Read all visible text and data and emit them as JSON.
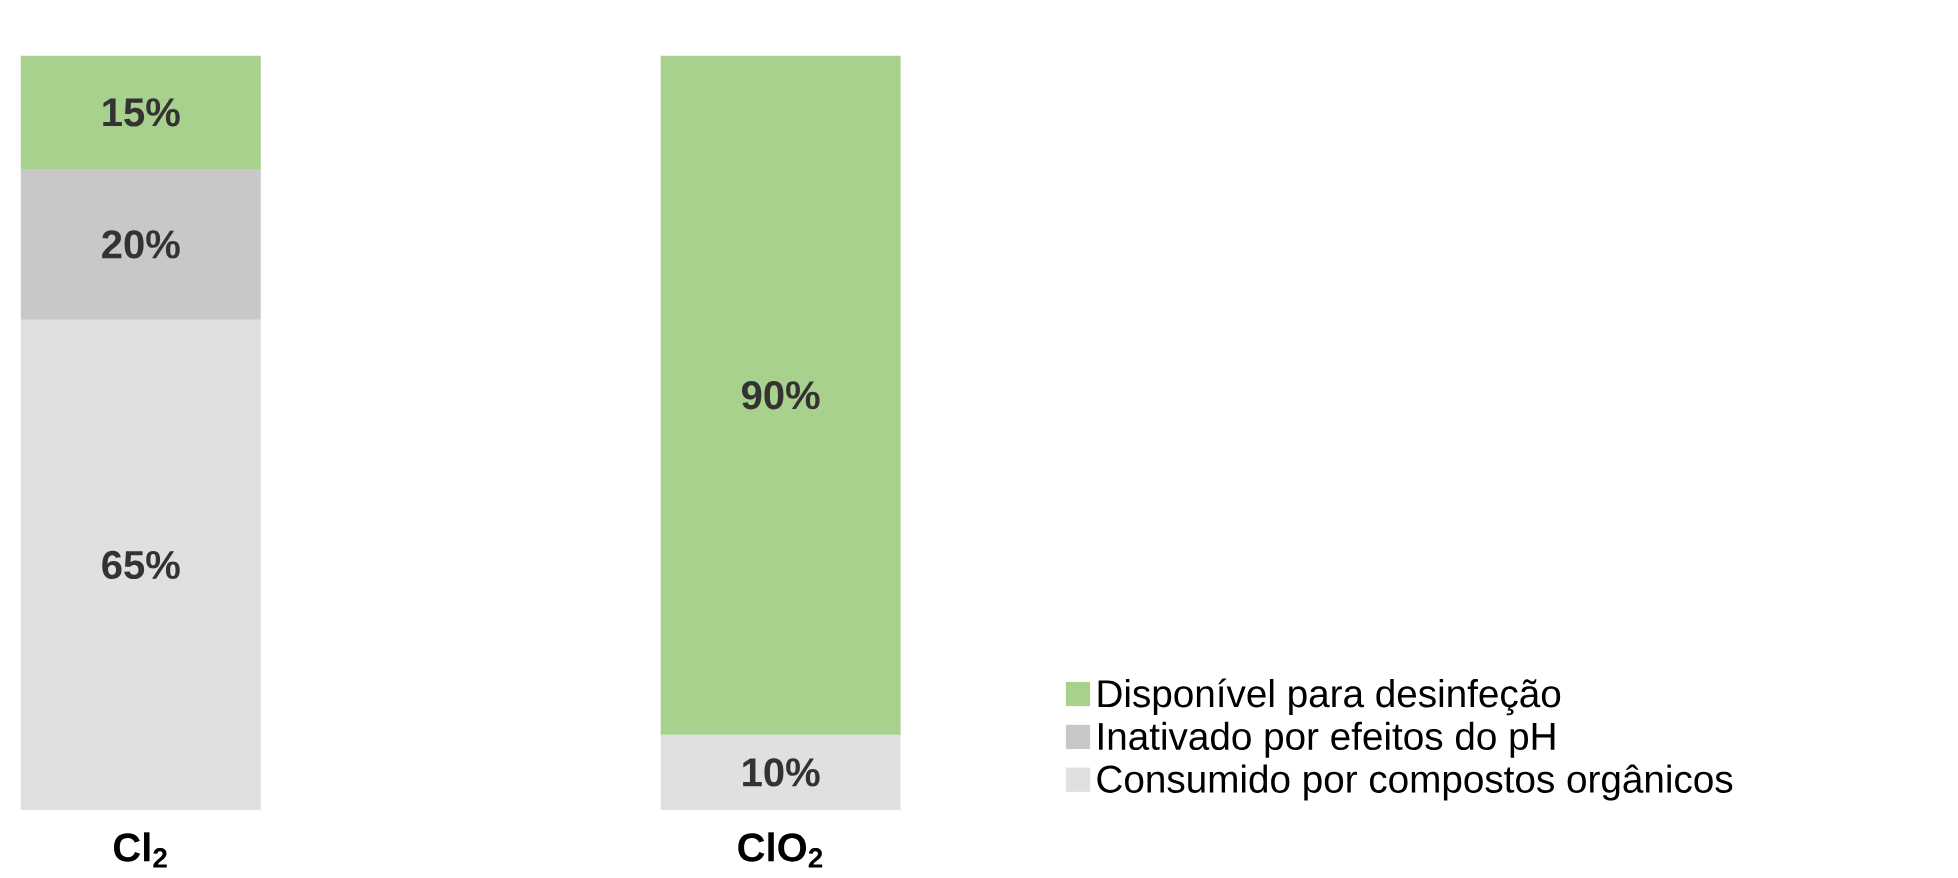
{
  "chart_data": {
    "type": "bar",
    "stacked": true,
    "categories": [
      "**Cl$_{2}$**",
      "**ClO$_{2}$**"
    ],
    "series": [
      {
        "name": "Consumido por compostos orgânicos",
        "color": "#e0e0e0",
        "values": [
          65,
          10
        ],
        "value_labels": [
          "65%",
          "10%"
        ]
      },
      {
        "name": "Inativado por efeitos do pH",
        "color": "#c8c8c8",
        "values": [
          20,
          null
        ],
        "value_labels": [
          "20%",
          null
        ]
      },
      {
        "name": "Disponível para desinfeção",
        "color": "#a9d18e",
        "values": [
          15,
          90
        ],
        "value_labels": [
          "15%",
          "90%"
        ]
      }
    ],
    "legend": "right",
    "tick_labels": "x"
  }
}
